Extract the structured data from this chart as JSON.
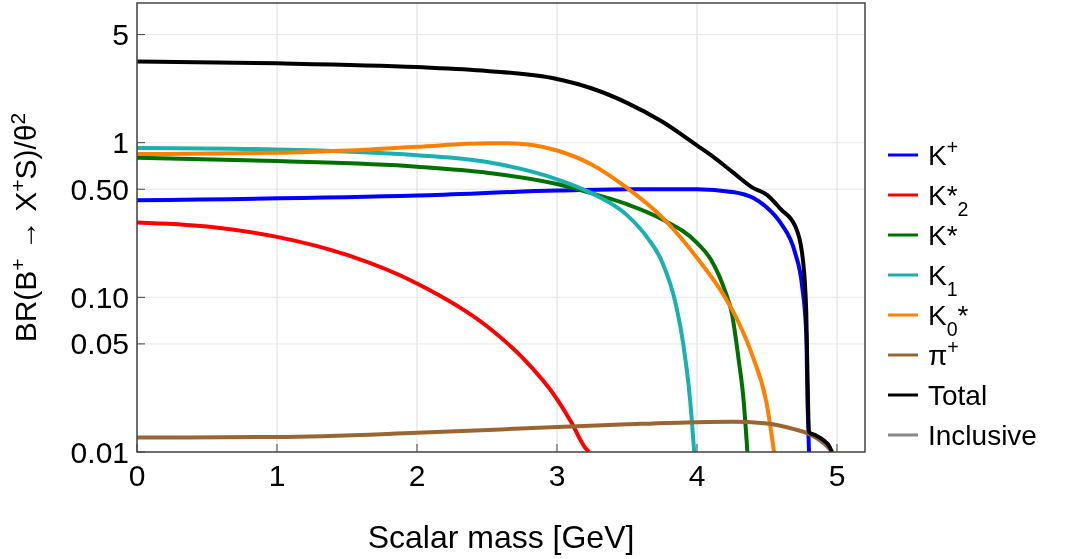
{
  "chart_data": {
    "type": "line",
    "xlabel": "Scalar mass [GeV]",
    "ylabel": "BR(B$^{+}$ → X$^{+}$S)/θ$^{2}$",
    "log": "y",
    "grid": true,
    "legend": "right",
    "line_style": "solid",
    "marker": "none",
    "xlim": [
      0,
      5.2
    ],
    "xticks": [
      0,
      1,
      2,
      3,
      4,
      5
    ],
    "ylim": [
      0.01,
      8
    ],
    "yticks": [
      0.01,
      0.05,
      {
        "value": 0.1,
        "label": "0.10"
      },
      {
        "value": 0.5,
        "label": "0.50"
      },
      1,
      5
    ],
    "series": [
      {
        "name": "K$^{+}$",
        "color": "#0000ff",
        "x": [
          0,
          2,
          3,
          3.5,
          4,
          4.25,
          4.4,
          4.5,
          4.6,
          4.7,
          4.75,
          4.78,
          4.79,
          4.8
        ],
        "values": [
          0.425,
          0.456,
          0.49,
          0.5,
          0.5,
          0.48,
          0.44,
          0.38,
          0.3,
          0.195,
          0.12,
          0.059,
          0.02,
          0.01
        ]
      },
      {
        "name": "K*$_{2}$",
        "color": "#ff0000",
        "x": [
          0,
          0.5,
          1,
          1.5,
          2,
          2.5,
          2.75,
          3,
          3.1,
          3.2,
          3.23
        ],
        "values": [
          0.305,
          0.287,
          0.246,
          0.188,
          0.123,
          0.065,
          0.041,
          0.022,
          0.0157,
          0.0107,
          0.01
        ]
      },
      {
        "name": "K*",
        "color": "#007000",
        "x": [
          0,
          1,
          2,
          2.5,
          3,
          3.25,
          3.5,
          3.75,
          4,
          4.1,
          4.2,
          4.25,
          4.3,
          4.33,
          4.36
        ],
        "values": [
          0.8,
          0.76,
          0.7,
          0.64,
          0.54,
          0.47,
          0.4,
          0.32,
          0.225,
          0.175,
          0.11,
          0.078,
          0.038,
          0.023,
          0.01
        ]
      },
      {
        "name": "K$_{1}$",
        "color": "#1aafb0",
        "x": [
          0,
          1,
          2,
          2.5,
          3,
          3.25,
          3.5,
          3.65,
          3.75,
          3.85,
          3.9,
          3.95,
          3.98
        ],
        "values": [
          0.925,
          0.905,
          0.83,
          0.75,
          0.58,
          0.47,
          0.34,
          0.24,
          0.17,
          0.089,
          0.051,
          0.022,
          0.01
        ]
      },
      {
        "name": "K$_{0}$*",
        "color": "#ff8000",
        "x": [
          0,
          1,
          1.5,
          2,
          2.5,
          2.65,
          3,
          3.25,
          3.5,
          3.75,
          4,
          4.2,
          4.3,
          4.4,
          4.5,
          4.55
        ],
        "values": [
          0.844,
          0.86,
          0.89,
          0.94,
          0.99,
          0.99,
          0.89,
          0.72,
          0.51,
          0.33,
          0.18,
          0.1,
          0.068,
          0.041,
          0.02,
          0.01
        ]
      },
      {
        "name": "π$^{+}$",
        "color": "#996633",
        "x": [
          0,
          1,
          2,
          3,
          3.5,
          4,
          4.25,
          4.5,
          4.7,
          4.8,
          4.9,
          4.97
        ],
        "values": [
          0.0124,
          0.0125,
          0.0133,
          0.0145,
          0.0151,
          0.0156,
          0.0157,
          0.0153,
          0.014,
          0.0131,
          0.0115,
          0.01
        ]
      },
      {
        "name": "Total",
        "color": "#000000",
        "x": [
          0,
          1,
          2,
          2.5,
          3,
          3.25,
          3.5,
          3.75,
          4,
          4.1,
          4.25,
          4.4,
          4.5,
          4.6,
          4.7,
          4.75,
          4.78,
          4.79,
          4.8,
          4.85,
          4.9,
          4.95,
          4.96
        ],
        "values": [
          3.35,
          3.26,
          3.08,
          2.91,
          2.58,
          2.24,
          1.81,
          1.37,
          0.96,
          0.83,
          0.65,
          0.51,
          0.46,
          0.37,
          0.29,
          0.195,
          0.083,
          0.029,
          0.0134,
          0.0128,
          0.012,
          0.0107,
          0.01
        ]
      },
      {
        "name": "Inclusive",
        "color": "#888888"
      }
    ]
  }
}
